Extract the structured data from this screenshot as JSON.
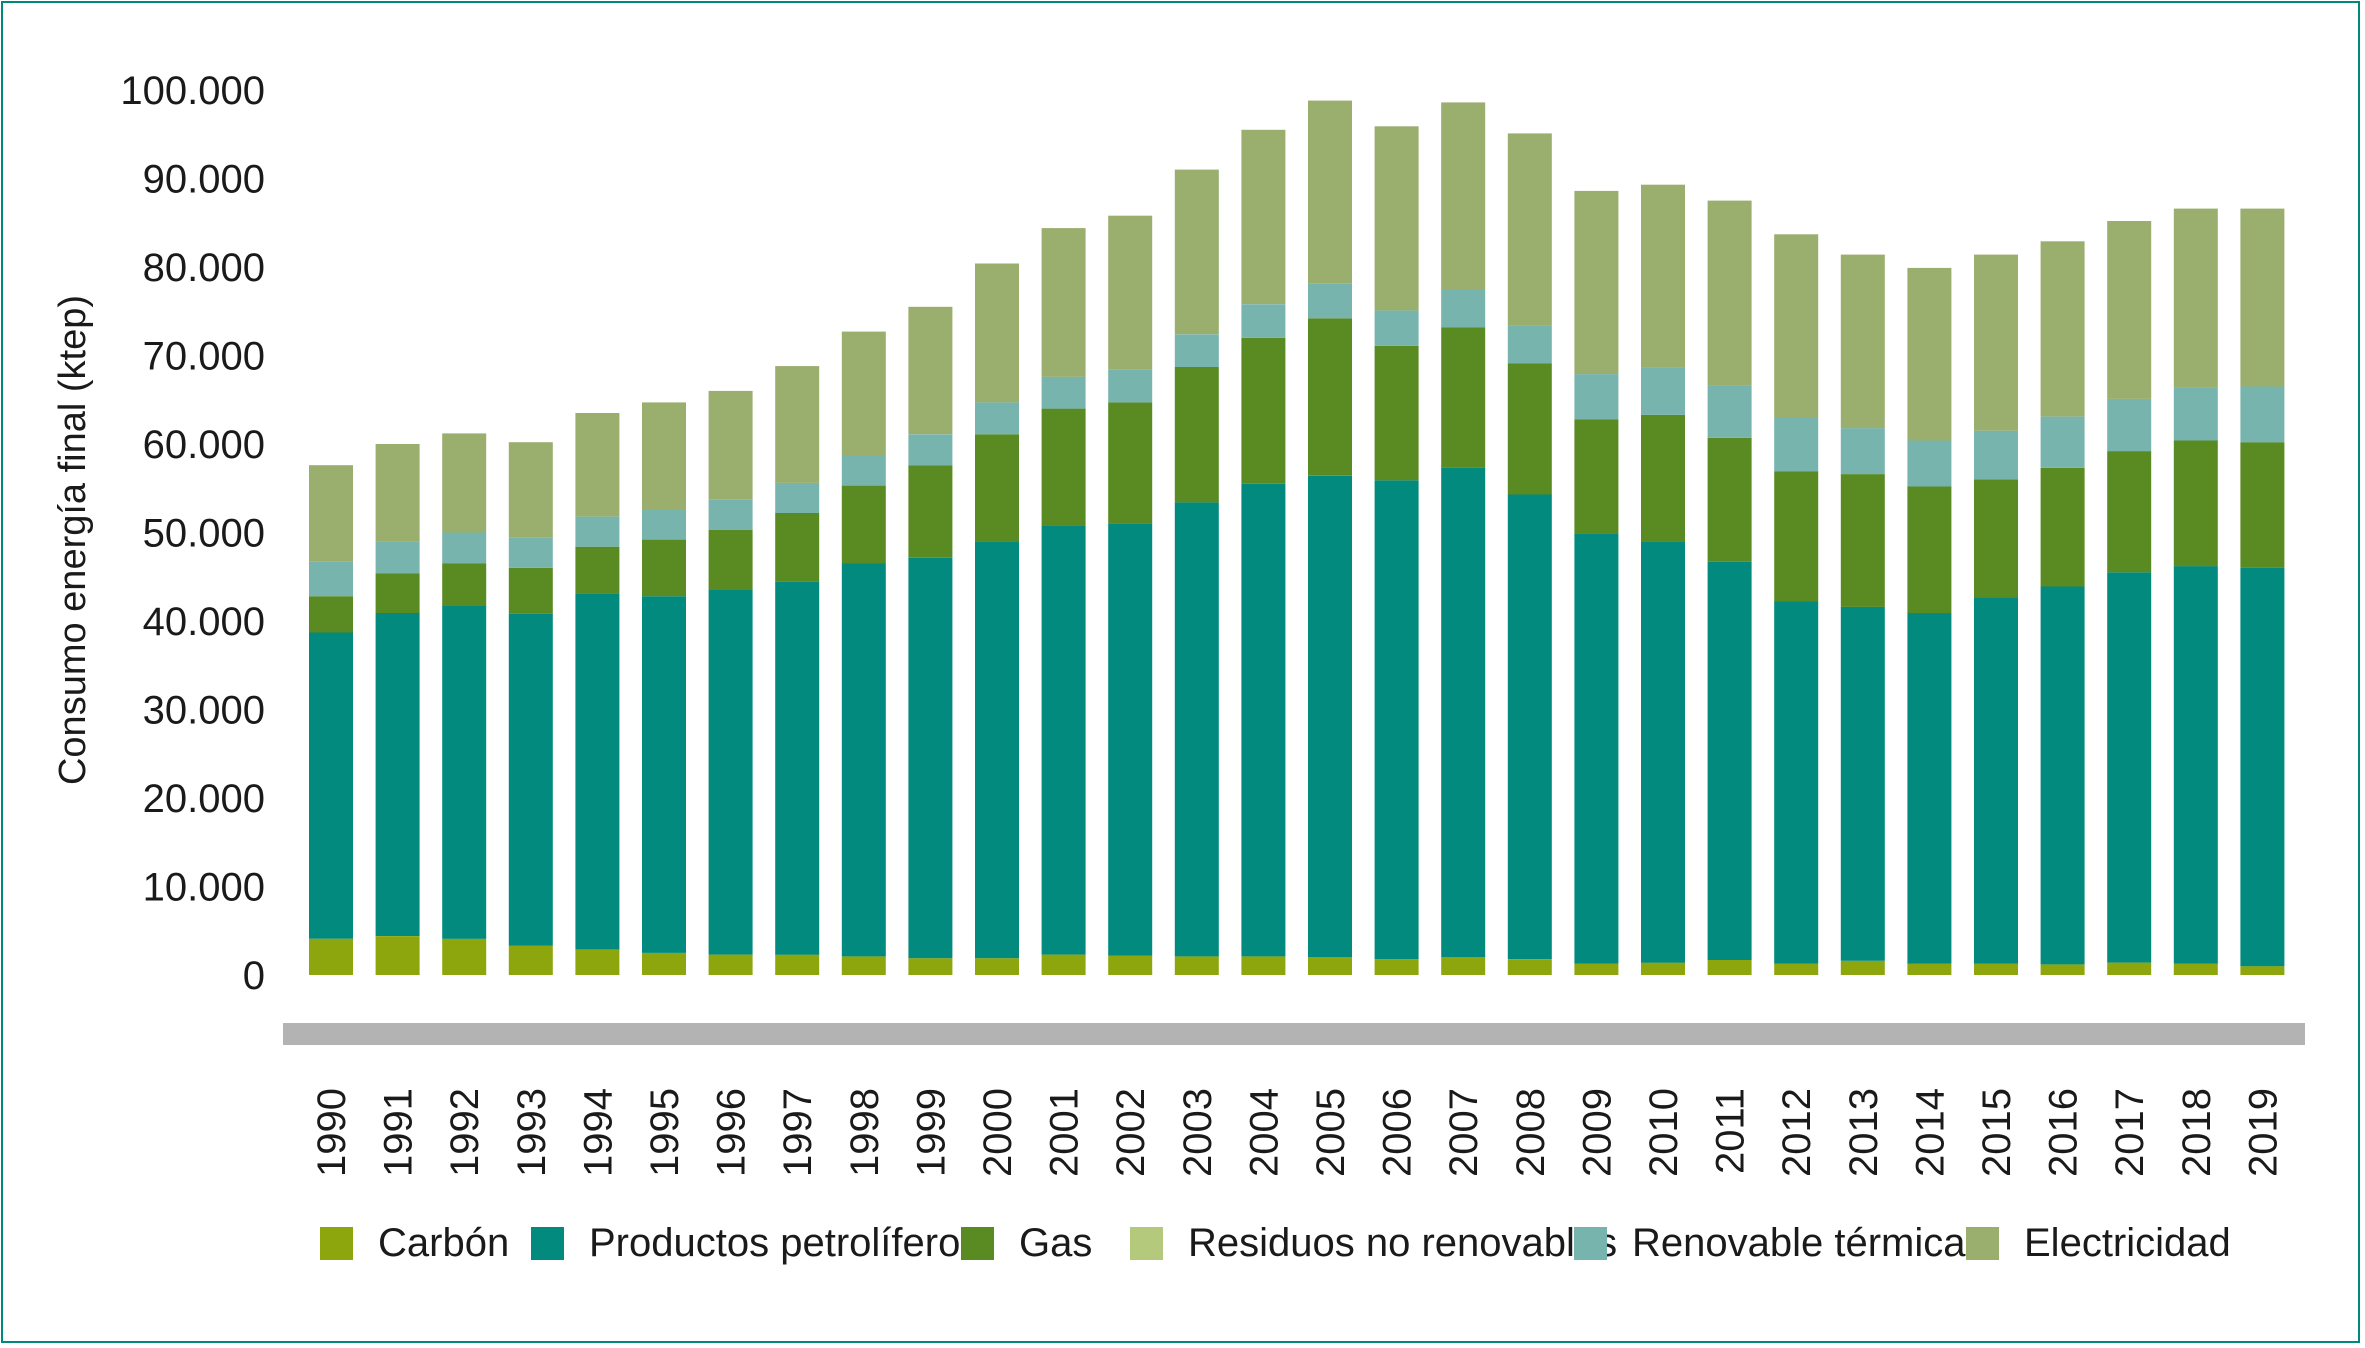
{
  "chart_data": {
    "type": "bar",
    "stacked": true,
    "title": "",
    "xlabel": "",
    "ylabel": "Consumo energía final (ktep)",
    "ylim": [
      0,
      100000
    ],
    "yticks": [
      0,
      10000,
      20000,
      30000,
      40000,
      50000,
      60000,
      70000,
      80000,
      90000,
      100000
    ],
    "ytick_labels": [
      "0",
      "10.000",
      "20.000",
      "30.000",
      "40.000",
      "50.000",
      "60.000",
      "70.000",
      "80.000",
      "90.000",
      "100.000"
    ],
    "grid": false,
    "legend_position": "bottom",
    "categories": [
      "1990",
      "1991",
      "1992",
      "1993",
      "1994",
      "1995",
      "1996",
      "1997",
      "1998",
      "1999",
      "2000",
      "2001",
      "2002",
      "2003",
      "2004",
      "2005",
      "2006",
      "2007",
      "2008",
      "2009",
      "2010",
      "2011",
      "2012",
      "2013",
      "2014",
      "2015",
      "2016",
      "2017",
      "2018",
      "2019"
    ],
    "series": [
      {
        "name": "Carbón",
        "color": "#8ea60e",
        "values": [
          4100,
          4400,
          4100,
          3300,
          2900,
          2500,
          2300,
          2300,
          2100,
          1900,
          1900,
          2300,
          2200,
          2100,
          2100,
          2000,
          1800,
          2000,
          1800,
          1300,
          1400,
          1700,
          1300,
          1600,
          1300,
          1300,
          1200,
          1400,
          1300,
          1000
        ]
      },
      {
        "name": "Productos petrolíferos",
        "color": "#028a7e",
        "values": [
          34600,
          36500,
          37600,
          37500,
          40200,
          40300,
          41200,
          42200,
          44400,
          45300,
          47100,
          48500,
          48800,
          51300,
          53400,
          54400,
          54100,
          55300,
          52500,
          48600,
          47600,
          45000,
          40900,
          40000,
          39600,
          41400,
          42700,
          44100,
          44900,
          45000
        ]
      },
      {
        "name": "Gas",
        "color": "#5a8a22",
        "values": [
          4100,
          4500,
          4800,
          5200,
          5300,
          6400,
          6800,
          7700,
          8800,
          10400,
          12100,
          13200,
          13700,
          15300,
          16500,
          17800,
          15200,
          15900,
          14800,
          12900,
          14300,
          14000,
          14700,
          15000,
          14300,
          13300,
          13400,
          13700,
          14200,
          14200
        ]
      },
      {
        "name": "Residuos no renovables",
        "color": "#b5c97c",
        "values": [
          0,
          0,
          0,
          0,
          0,
          0,
          0,
          0,
          0,
          0,
          0,
          0,
          0,
          0,
          0,
          0,
          0,
          0,
          0,
          0,
          0,
          0,
          0,
          0,
          0,
          0,
          0,
          0,
          0,
          0
        ]
      },
      {
        "name": "Renovable térmica",
        "color": "#78b4ae",
        "values": [
          3900,
          3600,
          3500,
          3400,
          3400,
          3400,
          3400,
          3400,
          3400,
          3500,
          3600,
          3600,
          3700,
          3700,
          3800,
          3900,
          4000,
          4200,
          4300,
          5100,
          5300,
          5900,
          6100,
          5200,
          5200,
          5500,
          5800,
          5900,
          6000,
          6300
        ]
      },
      {
        "name": "Electricidad",
        "color": "#9aaf6e",
        "values": [
          10900,
          11000,
          11200,
          10800,
          11700,
          12100,
          12300,
          13200,
          14000,
          14400,
          15700,
          16800,
          17400,
          18600,
          19700,
          20700,
          20800,
          21200,
          21700,
          20700,
          20700,
          20900,
          20700,
          19600,
          19500,
          19900,
          19800,
          20100,
          20200,
          20100
        ]
      }
    ]
  }
}
